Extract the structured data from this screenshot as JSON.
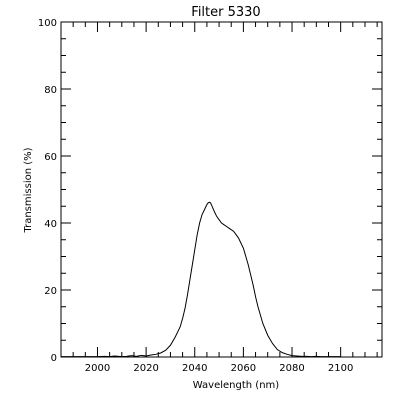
{
  "chart_data": {
    "type": "line",
    "title": "Filter 5330",
    "xlabel": "Wavelength (nm)",
    "ylabel": "Transmission (%)",
    "xlim": [
      1985,
      2117
    ],
    "ylim": [
      0,
      100
    ],
    "xticks": [
      2000,
      2020,
      2040,
      2060,
      2080,
      2100
    ],
    "yticks": [
      0,
      20,
      40,
      60,
      80,
      100
    ],
    "x_minor_step": 5,
    "y_minor_step": 5,
    "grid": false,
    "series": [
      {
        "x": [
          1985,
          1990,
          1995,
          2000,
          2003,
          2005,
          2007,
          2010,
          2012,
          2014,
          2016,
          2018,
          2020,
          2022,
          2024,
          2026,
          2028,
          2030,
          2032,
          2034,
          2035,
          2036,
          2037,
          2038,
          2039,
          2040,
          2041,
          2042,
          2043,
          2044,
          2045,
          2045.5,
          2046,
          2046.5,
          2047,
          2048,
          2049,
          2050,
          2051,
          2052,
          2053,
          2054,
          2055,
          2056,
          2057,
          2058,
          2059,
          2060,
          2061,
          2062,
          2063,
          2064,
          2065,
          2066,
          2067,
          2068,
          2070,
          2072,
          2074,
          2076,
          2078,
          2080,
          2082,
          2084,
          2086,
          2088,
          2090,
          2092,
          2094,
          2096,
          2098,
          2100
        ],
        "values": [
          0.1,
          0.1,
          0.1,
          0.1,
          0.2,
          0.1,
          0.3,
          0.1,
          0.2,
          0.4,
          0.2,
          0.5,
          0.3,
          0.6,
          0.8,
          1.2,
          2.0,
          3.5,
          6.0,
          9.0,
          11.5,
          14.5,
          18.5,
          23.0,
          27.5,
          32.0,
          36.5,
          40.0,
          42.5,
          44.0,
          45.5,
          46.0,
          46.2,
          46.0,
          45.2,
          43.5,
          42.0,
          41.0,
          40.0,
          39.5,
          39.0,
          38.5,
          38.0,
          37.5,
          36.5,
          35.5,
          34.0,
          32.5,
          30.0,
          27.5,
          24.5,
          21.5,
          18.0,
          15.0,
          12.5,
          10.0,
          6.5,
          4.0,
          2.2,
          1.3,
          0.8,
          0.4,
          0.3,
          0.2,
          0.2,
          0.1,
          0.2,
          0.1,
          0.1,
          0.1,
          0.1,
          0.1
        ]
      }
    ]
  }
}
